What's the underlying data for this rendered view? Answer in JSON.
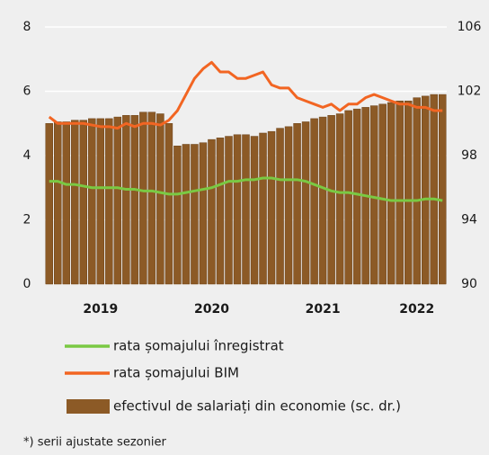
{
  "chart_data": {
    "type": "bar",
    "categories": [
      null,
      null,
      null,
      null,
      null,
      null,
      "2019",
      null,
      null,
      null,
      null,
      null,
      null,
      null,
      null,
      null,
      null,
      null,
      null,
      "2020",
      null,
      null,
      null,
      null,
      null,
      null,
      null,
      null,
      null,
      null,
      null,
      null,
      "2021",
      null,
      null,
      null,
      null,
      null,
      null,
      null,
      null,
      null,
      null,
      "2022",
      null,
      null,
      null
    ],
    "series": [
      {
        "name": "rata șomajului înregistrat",
        "type": "line",
        "color": "#7ac943",
        "axis": "y",
        "values": [
          3.2,
          3.2,
          3.1,
          3.1,
          3.05,
          3.0,
          3.0,
          3.0,
          3.0,
          2.95,
          2.95,
          2.9,
          2.9,
          2.85,
          2.8,
          2.8,
          2.85,
          2.9,
          2.95,
          3.0,
          3.1,
          3.2,
          3.2,
          3.25,
          3.25,
          3.3,
          3.3,
          3.25,
          3.25,
          3.25,
          3.2,
          3.1,
          3.0,
          2.9,
          2.85,
          2.85,
          2.8,
          2.75,
          2.7,
          2.65,
          2.6,
          2.6,
          2.6,
          2.6,
          2.65,
          2.65,
          2.6
        ]
      },
      {
        "name": "rata șomajului BIM",
        "type": "line",
        "color": "#f26522",
        "axis": "y",
        "values": [
          5.2,
          5.0,
          5.0,
          5.0,
          5.0,
          4.95,
          4.9,
          4.9,
          4.85,
          5.0,
          4.9,
          5.0,
          5.0,
          4.95,
          5.1,
          5.4,
          5.9,
          6.4,
          6.7,
          6.9,
          6.6,
          6.6,
          6.4,
          6.4,
          6.5,
          6.6,
          6.2,
          6.1,
          6.1,
          5.8,
          5.7,
          5.6,
          5.5,
          5.6,
          5.4,
          5.6,
          5.6,
          5.8,
          5.9,
          5.8,
          5.7,
          5.6,
          5.6,
          5.5,
          5.5,
          5.4,
          5.4
        ]
      },
      {
        "name": "efectivul de salariați din economie (sc. dr.)",
        "type": "bar",
        "color": "#8c5a26",
        "axis": "y2",
        "values": [
          100.0,
          100.1,
          100.1,
          100.2,
          100.2,
          100.3,
          100.3,
          100.3,
          100.4,
          100.5,
          100.5,
          100.7,
          100.7,
          100.6,
          100.0,
          98.6,
          98.7,
          98.7,
          98.8,
          99.0,
          99.1,
          99.2,
          99.3,
          99.3,
          99.2,
          99.4,
          99.5,
          99.7,
          99.8,
          100.0,
          100.1,
          100.3,
          100.4,
          100.5,
          100.6,
          100.8,
          100.9,
          101.0,
          101.1,
          101.2,
          101.3,
          101.4,
          101.4,
          101.6,
          101.7,
          101.8,
          101.8
        ]
      }
    ],
    "ylim": [
      0,
      8
    ],
    "yticks": [
      0,
      2,
      4,
      6,
      8
    ],
    "y2lim": [
      90,
      106
    ],
    "y2ticks": [
      90,
      94,
      98,
      102,
      106
    ],
    "grid": true,
    "footnote": "*) serii ajustate sezonier"
  }
}
